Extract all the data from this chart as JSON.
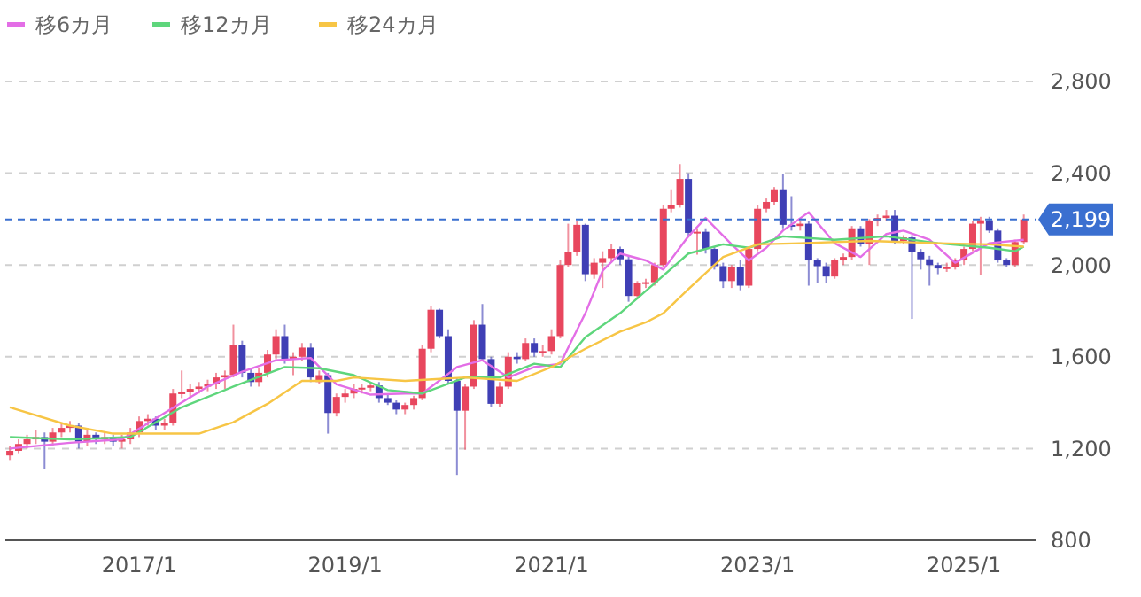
{
  "chart_data": {
    "type": "candlestick",
    "legend": "top left",
    "grid": "y",
    "marker": "none",
    "xlim": [
      "2015-09-15",
      "2025-09-15"
    ],
    "xticks": [
      {
        "value": "2017-01",
        "label": "2017/1"
      },
      {
        "value": "2019-01",
        "label": "2019/1"
      },
      {
        "value": "2021-01",
        "label": "2021/1"
      },
      {
        "value": "2023-01",
        "label": "2023/1"
      },
      {
        "value": "2025-01",
        "label": "2025/1"
      }
    ],
    "ylim": [
      800,
      2800
    ],
    "yticks": [
      800,
      {
        "value": 1200,
        "label": "1,200"
      },
      {
        "value": 1600,
        "label": "1,600"
      },
      {
        "value": 2000,
        "label": "2,000"
      },
      {
        "value": 2400,
        "label": "2,400"
      },
      {
        "value": 2800,
        "label": "2,800"
      }
    ],
    "ref_lines": [
      {
        "axis": "y",
        "value": 2199,
        "label": "2,199",
        "color": "#3a6fd0",
        "line_style": "dashed"
      }
    ],
    "series": [
      {
        "x": [
          "2015-10",
          "2015-11",
          "2015-12",
          "2016-01",
          "2016-02",
          "2016-03",
          "2016-04",
          "2016-05",
          "2016-06",
          "2016-07",
          "2016-08",
          "2016-09",
          "2016-10",
          "2016-11",
          "2016-12",
          "2017-01",
          "2017-02",
          "2017-03",
          "2017-04",
          "2017-05",
          "2017-06",
          "2017-07",
          "2017-08",
          "2017-09",
          "2017-10",
          "2017-11",
          "2017-12",
          "2018-01",
          "2018-02",
          "2018-03",
          "2018-04",
          "2018-05",
          "2018-06",
          "2018-07",
          "2018-08",
          "2018-09",
          "2018-10",
          "2018-11",
          "2018-12",
          "2019-01",
          "2019-02",
          "2019-03",
          "2019-04",
          "2019-05",
          "2019-06",
          "2019-07",
          "2019-08",
          "2019-09",
          "2019-10",
          "2019-11",
          "2019-12",
          "2020-01",
          "2020-02",
          "2020-03",
          "2020-04",
          "2020-05",
          "2020-06",
          "2020-07",
          "2020-08",
          "2020-09",
          "2020-10",
          "2020-11",
          "2020-12",
          "2021-01",
          "2021-02",
          "2021-03",
          "2021-04",
          "2021-05",
          "2021-06",
          "2021-07",
          "2021-08",
          "2021-09",
          "2021-10",
          "2021-11",
          "2021-12",
          "2022-01",
          "2022-02",
          "2022-03",
          "2022-04",
          "2022-05",
          "2022-06",
          "2022-07",
          "2022-08",
          "2022-09",
          "2022-10",
          "2022-11",
          "2022-12",
          "2023-01",
          "2023-02",
          "2023-03",
          "2023-04",
          "2023-05",
          "2023-06",
          "2023-07",
          "2023-08",
          "2023-09",
          "2023-10",
          "2023-11",
          "2023-12",
          "2024-01",
          "2024-02",
          "2024-03",
          "2024-04",
          "2024-05",
          "2024-06",
          "2024-07",
          "2024-08",
          "2024-09",
          "2024-10",
          "2024-11",
          "2024-12",
          "2025-01",
          "2025-02",
          "2025-03",
          "2025-04",
          "2025-05",
          "2025-06",
          "2025-07",
          "2025-08"
        ],
        "ohlc": [
          [
            1170,
            1210,
            1150,
            1190
          ],
          [
            1190,
            1240,
            1180,
            1220
          ],
          [
            1220,
            1260,
            1200,
            1240
          ],
          [
            1240,
            1280,
            1220,
            1250
          ],
          [
            1250,
            1270,
            1110,
            1230
          ],
          [
            1230,
            1290,
            1210,
            1270
          ],
          [
            1270,
            1310,
            1250,
            1290
          ],
          [
            1290,
            1320,
            1270,
            1300
          ],
          [
            1300,
            1310,
            1200,
            1230
          ],
          [
            1230,
            1280,
            1210,
            1260
          ],
          [
            1260,
            1270,
            1220,
            1240
          ],
          [
            1240,
            1270,
            1220,
            1250
          ],
          [
            1250,
            1260,
            1210,
            1230
          ],
          [
            1230,
            1260,
            1200,
            1240
          ],
          [
            1240,
            1290,
            1220,
            1270
          ],
          [
            1270,
            1340,
            1250,
            1320
          ],
          [
            1320,
            1350,
            1300,
            1330
          ],
          [
            1330,
            1340,
            1280,
            1300
          ],
          [
            1300,
            1330,
            1280,
            1310
          ],
          [
            1310,
            1460,
            1300,
            1440
          ],
          [
            1440,
            1540,
            1420,
            1445
          ],
          [
            1445,
            1480,
            1420,
            1460
          ],
          [
            1460,
            1490,
            1440,
            1470
          ],
          [
            1470,
            1500,
            1450,
            1480
          ],
          [
            1480,
            1530,
            1460,
            1510
          ],
          [
            1510,
            1540,
            1460,
            1520
          ],
          [
            1520,
            1740,
            1510,
            1650
          ],
          [
            1650,
            1670,
            1510,
            1530
          ],
          [
            1530,
            1550,
            1470,
            1490
          ],
          [
            1490,
            1550,
            1470,
            1530
          ],
          [
            1530,
            1630,
            1510,
            1610
          ],
          [
            1610,
            1720,
            1590,
            1690
          ],
          [
            1690,
            1740,
            1570,
            1590
          ],
          [
            1590,
            1620,
            1520,
            1600
          ],
          [
            1600,
            1660,
            1580,
            1640
          ],
          [
            1640,
            1660,
            1490,
            1510
          ],
          [
            1490,
            1540,
            1480,
            1520
          ],
          [
            1520,
            1530,
            1265,
            1355
          ],
          [
            1355,
            1440,
            1340,
            1425
          ],
          [
            1425,
            1460,
            1400,
            1440
          ],
          [
            1440,
            1480,
            1420,
            1460
          ],
          [
            1460,
            1480,
            1440,
            1465
          ],
          [
            1465,
            1490,
            1450,
            1475
          ],
          [
            1475,
            1490,
            1400,
            1420
          ],
          [
            1420,
            1440,
            1390,
            1400
          ],
          [
            1400,
            1410,
            1350,
            1370
          ],
          [
            1370,
            1400,
            1350,
            1390
          ],
          [
            1390,
            1430,
            1370,
            1420
          ],
          [
            1420,
            1650,
            1410,
            1635
          ],
          [
            1635,
            1820,
            1620,
            1805
          ],
          [
            1805,
            1810,
            1680,
            1690
          ],
          [
            1690,
            1720,
            1480,
            1495
          ],
          [
            1495,
            1510,
            1085,
            1365
          ],
          [
            1365,
            1480,
            1195,
            1470
          ],
          [
            1470,
            1760,
            1460,
            1740
          ],
          [
            1740,
            1830,
            1580,
            1590
          ],
          [
            1590,
            1600,
            1380,
            1395
          ],
          [
            1395,
            1490,
            1380,
            1470
          ],
          [
            1470,
            1620,
            1460,
            1600
          ],
          [
            1600,
            1620,
            1570,
            1590
          ],
          [
            1590,
            1680,
            1580,
            1660
          ],
          [
            1660,
            1680,
            1600,
            1620
          ],
          [
            1620,
            1650,
            1600,
            1625
          ],
          [
            1625,
            1720,
            1610,
            1690
          ],
          [
            1690,
            2020,
            1680,
            2000
          ],
          [
            2000,
            2180,
            1990,
            2055
          ],
          [
            2055,
            2190,
            2040,
            2175
          ],
          [
            2175,
            2180,
            1930,
            1960
          ],
          [
            1960,
            2030,
            1940,
            2010
          ],
          [
            2010,
            2060,
            1900,
            2030
          ],
          [
            2030,
            2090,
            2010,
            2070
          ],
          [
            2070,
            2080,
            2000,
            2025
          ],
          [
            2025,
            2040,
            1840,
            1865
          ],
          [
            1865,
            1930,
            1850,
            1920
          ],
          [
            1920,
            1940,
            1900,
            1925
          ],
          [
            1925,
            2010,
            1910,
            2000
          ],
          [
            2000,
            2260,
            1990,
            2245
          ],
          [
            2245,
            2330,
            2230,
            2260
          ],
          [
            2260,
            2440,
            2250,
            2375
          ],
          [
            2375,
            2400,
            2120,
            2140
          ],
          [
            2140,
            2160,
            2045,
            2145
          ],
          [
            2145,
            2160,
            2050,
            2070
          ],
          [
            2070,
            2080,
            1980,
            1995
          ],
          [
            1995,
            2010,
            1900,
            1930
          ],
          [
            1930,
            2000,
            1900,
            1990
          ],
          [
            1990,
            2020,
            1890,
            1910
          ],
          [
            1910,
            2080,
            1900,
            2070
          ],
          [
            2070,
            2260,
            2060,
            2245
          ],
          [
            2245,
            2290,
            2230,
            2275
          ],
          [
            2275,
            2340,
            2260,
            2330
          ],
          [
            2330,
            2395,
            2160,
            2175
          ],
          [
            2175,
            2300,
            2150,
            2170
          ],
          [
            2170,
            2190,
            2150,
            2180
          ],
          [
            2180,
            2190,
            1910,
            2020
          ],
          [
            2020,
            2030,
            1920,
            1995
          ],
          [
            1995,
            2010,
            1920,
            1950
          ],
          [
            1950,
            2030,
            1940,
            2020
          ],
          [
            2020,
            2050,
            2000,
            2035
          ],
          [
            2035,
            2170,
            2020,
            2160
          ],
          [
            2160,
            2170,
            2080,
            2090
          ],
          [
            2090,
            2200,
            2000,
            2190
          ],
          [
            2190,
            2220,
            2170,
            2205
          ],
          [
            2205,
            2240,
            2190,
            2215
          ],
          [
            2215,
            2240,
            2090,
            2105
          ],
          [
            2105,
            2130,
            2090,
            2120
          ],
          [
            2120,
            2130,
            1765,
            2055
          ],
          [
            2055,
            2070,
            1980,
            2025
          ],
          [
            2025,
            2040,
            1910,
            2000
          ],
          [
            2000,
            2010,
            1960,
            1985
          ],
          [
            1985,
            2010,
            1970,
            1990
          ],
          [
            1990,
            2030,
            1980,
            2020
          ],
          [
            2020,
            2080,
            2000,
            2070
          ],
          [
            2070,
            2190,
            2060,
            2180
          ],
          [
            2180,
            2210,
            1955,
            2195
          ],
          [
            2195,
            2210,
            2140,
            2150
          ],
          [
            2150,
            2160,
            2010,
            2020
          ],
          [
            2020,
            2030,
            1990,
            2000
          ],
          [
            2000,
            2110,
            1990,
            2100
          ],
          [
            2100,
            2220,
            2090,
            2199
          ]
        ]
      },
      {
        "type": "line",
        "name": "移6カ月",
        "color": "#e36ee6",
        "x": [
          "2015-10",
          "2016-05",
          "2016-11",
          "2017-04",
          "2017-09",
          "2018-01",
          "2018-05",
          "2018-09",
          "2018-12",
          "2019-04",
          "2019-08",
          "2019-10",
          "2020-02",
          "2020-05",
          "2020-08",
          "2020-11",
          "2021-02",
          "2021-05",
          "2021-07",
          "2021-09",
          "2021-12",
          "2022-02",
          "2022-05",
          "2022-07",
          "2022-10",
          "2022-12",
          "2023-02",
          "2023-04",
          "2023-07",
          "2023-10",
          "2024-01",
          "2024-04",
          "2024-06",
          "2024-09",
          "2024-12",
          "2025-04",
          "2025-08"
        ],
        "values": [
          1200,
          1225,
          1240,
          1355,
          1470,
          1535,
          1585,
          1595,
          1480,
          1435,
          1440,
          1440,
          1555,
          1585,
          1510,
          1555,
          1570,
          1790,
          1975,
          2050,
          2020,
          1980,
          2125,
          2205,
          2090,
          2020,
          2075,
          2150,
          2230,
          2095,
          2035,
          2135,
          2150,
          2110,
          2010,
          2095,
          2110
        ]
      },
      {
        "type": "line",
        "name": "移12カ月",
        "color": "#5ed67c",
        "x": [
          "2015-10",
          "2016-05",
          "2016-12",
          "2017-06",
          "2017-12",
          "2018-06",
          "2018-10",
          "2019-02",
          "2019-06",
          "2019-10",
          "2020-03",
          "2020-07",
          "2020-11",
          "2021-02",
          "2021-05",
          "2021-09",
          "2022-01",
          "2022-05",
          "2022-09",
          "2022-12",
          "2023-04",
          "2023-10",
          "2024-04",
          "2024-10",
          "2025-04",
          "2025-07",
          "2025-08"
        ],
        "values": [
          1250,
          1240,
          1250,
          1380,
          1470,
          1555,
          1550,
          1520,
          1455,
          1440,
          1510,
          1510,
          1570,
          1555,
          1685,
          1790,
          1920,
          2050,
          2090,
          2075,
          2125,
          2110,
          2125,
          2095,
          2075,
          2060,
          2080
        ]
      },
      {
        "type": "line",
        "name": "移24カ月",
        "color": "#f7c545",
        "x": [
          "2015-10",
          "2016-05",
          "2016-10",
          "2017-04",
          "2017-08",
          "2017-12",
          "2018-04",
          "2018-08",
          "2018-12",
          "2019-02",
          "2019-08",
          "2020-03",
          "2020-09",
          "2021-01",
          "2021-05",
          "2021-09",
          "2021-12",
          "2022-02",
          "2022-05",
          "2022-09",
          "2023-01",
          "2023-06",
          "2024-02",
          "2024-10",
          "2025-04",
          "2025-08"
        ],
        "values": [
          1380,
          1300,
          1265,
          1265,
          1265,
          1315,
          1395,
          1495,
          1495,
          1510,
          1495,
          1510,
          1495,
          1555,
          1635,
          1710,
          1750,
          1790,
          1895,
          2035,
          2090,
          2095,
          2105,
          2095,
          2090,
          2080
        ]
      }
    ]
  }
}
